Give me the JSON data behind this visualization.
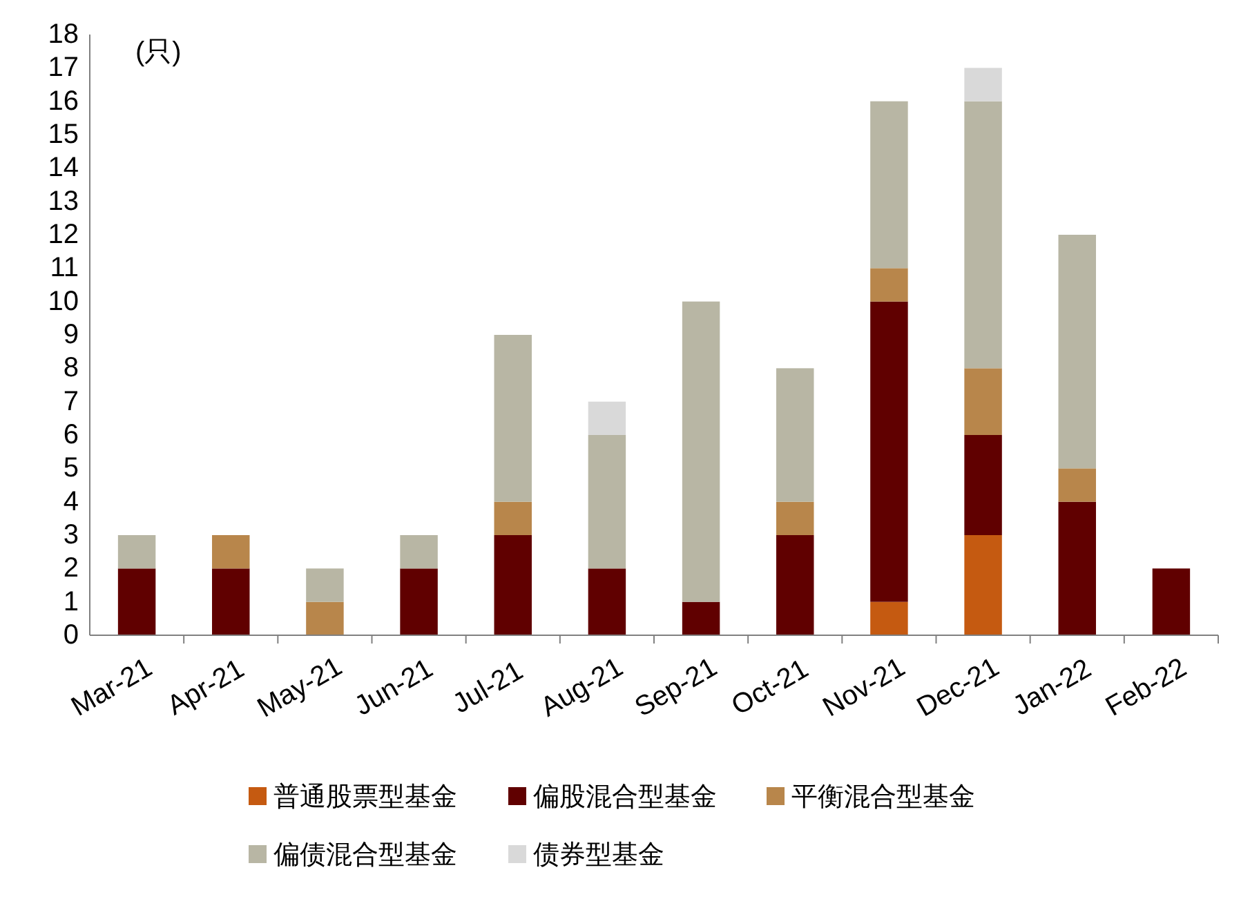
{
  "chart_data": {
    "type": "bar",
    "stacked": true,
    "ylabel": "(只)",
    "categories": [
      "Mar-21",
      "Apr-21",
      "May-21",
      "Jun-21",
      "Jul-21",
      "Aug-21",
      "Sep-21",
      "Oct-21",
      "Nov-21",
      "Dec-21",
      "Jan-22",
      "Feb-22"
    ],
    "series": [
      {
        "name": "普通股票型基金",
        "color": "#c55a11",
        "values": [
          null,
          null,
          null,
          null,
          null,
          null,
          null,
          null,
          1,
          3,
          null,
          null
        ]
      },
      {
        "name": "偏股混合型基金",
        "color": "#600000",
        "values": [
          2,
          2,
          null,
          2,
          3,
          2,
          1,
          3,
          9,
          3,
          4,
          2
        ]
      },
      {
        "name": "平衡混合型基金",
        "color": "#b8864b",
        "values": [
          null,
          1,
          1,
          null,
          1,
          null,
          null,
          1,
          1,
          2,
          1,
          null
        ]
      },
      {
        "name": "偏债混合型基金",
        "color": "#b8b6a4",
        "values": [
          1,
          null,
          1,
          1,
          5,
          4,
          9,
          4,
          5,
          8,
          7,
          null
        ]
      },
      {
        "name": "债券型基金",
        "color": "#d9d9d9",
        "values": [
          null,
          null,
          null,
          null,
          null,
          1,
          null,
          null,
          null,
          1,
          null,
          null
        ]
      }
    ],
    "ylim": [
      0,
      18
    ],
    "yticks": [
      0,
      1,
      2,
      3,
      4,
      5,
      6,
      7,
      8,
      9,
      10,
      11,
      12,
      13,
      14,
      15,
      16,
      17,
      18
    ],
    "legend": "bottom"
  }
}
